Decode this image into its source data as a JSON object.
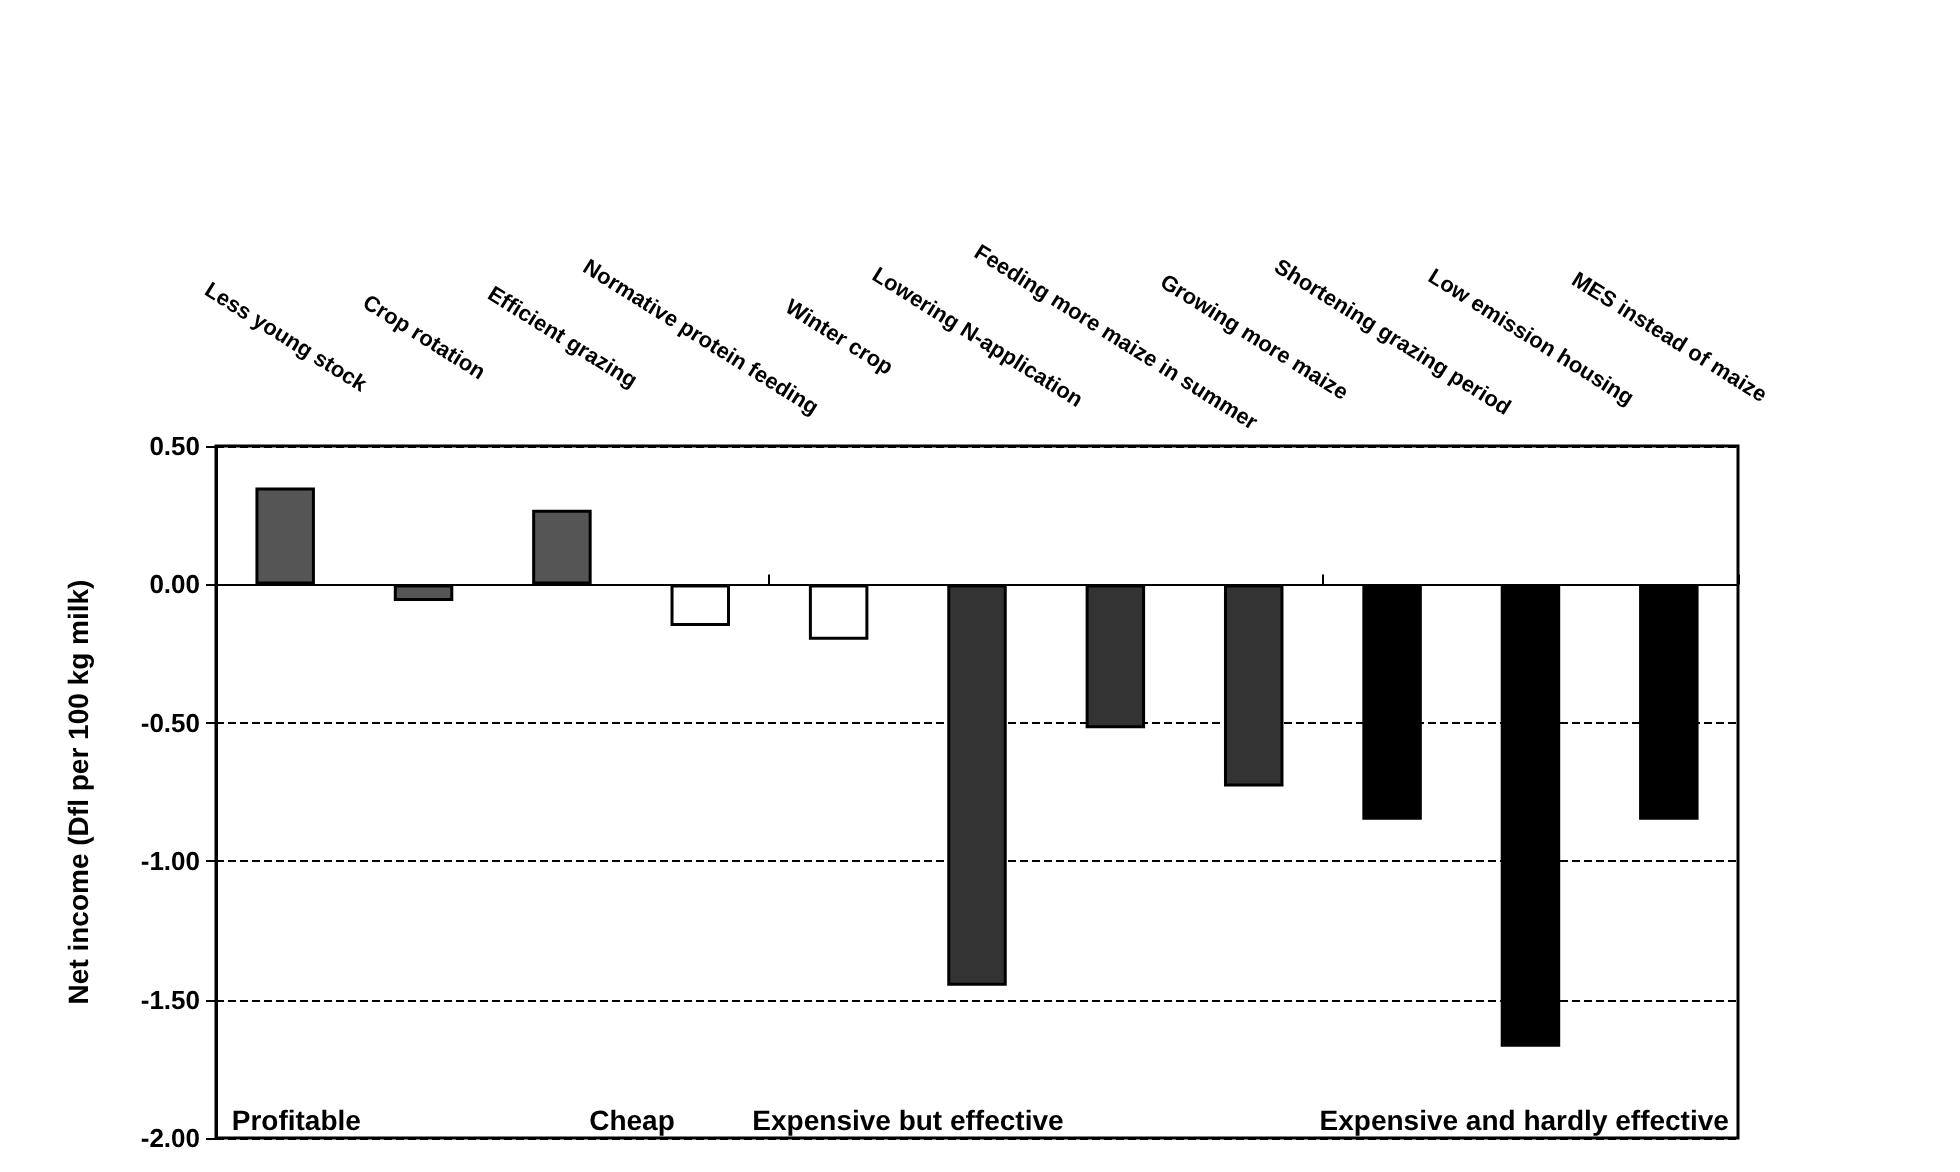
{
  "chart_data": {
    "type": "bar",
    "categories": [
      "Less young stock",
      "Crop rotation",
      "Efficient grazing",
      "Normative protein feeding",
      "Winter crop",
      "Lowering N-application",
      "Feeding more maize in summer",
      "Growing more maize",
      "Shortening grazing period",
      "Low emission housing",
      "MES instead of maize"
    ],
    "values": [
      0.35,
      -0.06,
      0.27,
      -0.15,
      -0.2,
      -1.45,
      -0.52,
      -0.73,
      -0.85,
      -1.67,
      -0.85
    ],
    "colors": [
      "#555555",
      "#555555",
      "#555555",
      "#ffffff",
      "#ffffff",
      "#333333",
      "#333333",
      "#333333",
      "#000000",
      "#000000",
      "#000000"
    ],
    "ylabel": "Net income (Dfl per 100 kg milk)",
    "ylim": [
      -2,
      0.5
    ],
    "yticks": [
      {
        "value": 0.5,
        "label": "0.50"
      },
      {
        "value": 0,
        "label": "0.00"
      },
      {
        "value": -0.5,
        "label": "-0.50"
      },
      {
        "value": -1,
        "label": "-1.00"
      },
      {
        "value": -1.5,
        "label": "-1.50"
      },
      {
        "value": -2,
        "label": "-2.00"
      }
    ],
    "grid": "y",
    "annotations": [
      "Profitable",
      "Cheap",
      "Expensive but effective",
      "Expensive and hardly effective"
    ]
  }
}
